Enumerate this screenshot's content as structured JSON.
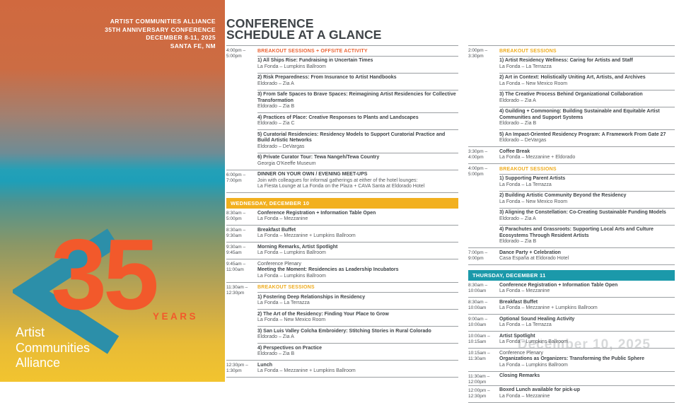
{
  "sidebar": {
    "header_lines": [
      "ARTIST COMMUNITIES ALLIANCE",
      "35TH ANNIVERSARY CONFERENCE",
      "DECEMBER 8-11, 2025",
      "SANTA FE, NM"
    ],
    "logo": {
      "number": "35",
      "years": "YEARS",
      "org_lines": [
        "Artist",
        "Communities",
        "Alliance"
      ]
    }
  },
  "title": {
    "line1": "CONFERENCE",
    "line2": "SCHEDULE AT A GLANCE"
  },
  "watermark": "December 10, 2025",
  "colors": {
    "orange": "#EB6333",
    "gold": "#EFAC1E",
    "banner_gold": "#F2B01F",
    "banner_teal": "#1B99AA"
  },
  "columns": [
    {
      "groups": [
        {
          "banner": null,
          "blocks": [
            {
              "time": [
                "4:00pm –",
                "5:00pm"
              ],
              "header": {
                "text": "BREAKOUT SESSIONS + OFFSITE ACTIVITY",
                "color": "orange"
              },
              "items": [
                {
                  "title": "1) All Ships Rise: Fundraising in Uncertain Times",
                  "loc": [
                    "La Fonda – Lumpkins Ballroom"
                  ]
                },
                {
                  "title": "2) Risk Preparedness: From Insurance to Artist Handbooks",
                  "loc": [
                    "Eldorado – Zia A"
                  ]
                },
                {
                  "title": "3) From Safe Spaces to Brave Spaces: Reimagining Artist Residencies for Collective Transformation",
                  "loc": [
                    "Eldorado – Zia B"
                  ]
                },
                {
                  "title": "4) Practices of Place: Creative Responses to Plants and Landscapes",
                  "loc": [
                    "Eldorado – Zia C"
                  ]
                },
                {
                  "title": "5) Curatorial Residencies: Residency Models to Support Curatorial Practice and Build Artistic Networks",
                  "loc": [
                    "Eldorado – DeVargas"
                  ]
                },
                {
                  "title": "6) Private Curator Tour: Tewa Nangeh/Tewa Country",
                  "loc": [
                    "Georgia O'Keeffe Museum"
                  ]
                }
              ]
            },
            {
              "time": [
                "6:00pm –",
                "7:00pm"
              ],
              "items": [
                {
                  "title": "DINNER ON YOUR OWN / EVENING MEET-UPS",
                  "loc": [
                    "Join with colleagues for informal gatherings at either of the hotel lounges:",
                    "La Fiesta Lounge at La Fonda on the Plaza + CAVA Santa at Eldorado Hotel"
                  ]
                }
              ]
            }
          ]
        },
        {
          "banner": {
            "text": "WEDNESDAY, DECEMBER 10",
            "color": "banner_gold"
          },
          "blocks": [
            {
              "time": [
                "8:30am –",
                "5:00pm"
              ],
              "items": [
                {
                  "title": "Conference Registration + Information Table Open",
                  "loc": [
                    "La Fonda – Mezzanine"
                  ]
                }
              ]
            },
            {
              "time": [
                "8:30am –",
                "9:30am"
              ],
              "items": [
                {
                  "title": "Breakfast Buffet",
                  "loc": [
                    "La Fonda – Mezzanine + Lumpkins Ballroom"
                  ]
                }
              ]
            },
            {
              "time": [
                "9:30am –",
                "9:45am"
              ],
              "items": [
                {
                  "title": "Morning Remarks, Artist Spotlight",
                  "loc": [
                    "La Fonda – Lumpkins Ballroom"
                  ]
                }
              ]
            },
            {
              "time": [
                "9:45am –",
                "11:00am"
              ],
              "items": [
                {
                  "pretitle": "Conference Plenary",
                  "title": "Meeting the Moment: Residencies as Leadership Incubators",
                  "loc": [
                    "La Fonda – Lumpkins Ballroom"
                  ]
                }
              ]
            },
            {
              "time": [
                "11:30am –",
                "12:30pm"
              ],
              "header": {
                "text": "BREAKOUT SESSIONS",
                "color": "gold"
              },
              "items": [
                {
                  "title": "1) Fostering Deep Relationships in Residency",
                  "loc": [
                    "La Fonda – La Terrazza"
                  ]
                },
                {
                  "title": "2) The Art of the Residency: Finding Your Place to Grow",
                  "loc": [
                    "La Fonda – New Mexico Room"
                  ]
                },
                {
                  "title": "3) San Luis Valley Colcha Embroidery: Stitching Stories in Rural Colorado",
                  "loc": [
                    "Eldorado – Zia A"
                  ]
                },
                {
                  "title": "4) Perspectives on Practice",
                  "loc": [
                    "Eldorado – Zia B"
                  ]
                }
              ]
            },
            {
              "time": [
                "12:30pm –",
                "1:30pm"
              ],
              "items": [
                {
                  "title": "Lunch",
                  "loc": [
                    "La Fonda – Mezzanine + Lumpkins Ballroom"
                  ]
                }
              ]
            }
          ]
        }
      ]
    },
    {
      "groups": [
        {
          "banner": null,
          "blocks": [
            {
              "time": [
                "2:00pm –",
                "3:30pm"
              ],
              "header": {
                "text": "BREAKOUT SESSIONS",
                "color": "gold"
              },
              "items": [
                {
                  "title": "1) Artist Residency Wellness: Caring for Artists and Staff",
                  "loc": [
                    "La Fonda – La Terrazza"
                  ]
                },
                {
                  "title": "2) Art in Context: Holistically Uniting Art, Artists, and Archives",
                  "loc": [
                    "La Fonda – New Mexico Room"
                  ]
                },
                {
                  "title": "3) The Creative Process Behind Organizational Collaboration",
                  "loc": [
                    "Eldorado – Zia A"
                  ]
                },
                {
                  "title": "4) Guilding + Commoning: Building Sustainable and Equitable Artist Communities and Support Systems",
                  "loc": [
                    "Eldorado – Zia B"
                  ]
                },
                {
                  "title": "5) An Impact-Oriented Residency Program: A Framework From Gate 27",
                  "loc": [
                    "Eldorado – DeVargas"
                  ]
                }
              ]
            },
            {
              "time": [
                "3:30pm –",
                "4:00pm"
              ],
              "items": [
                {
                  "title": "Coffee Break",
                  "loc": [
                    "La Fonda – Mezzanine + Eldorado"
                  ]
                }
              ]
            },
            {
              "time": [
                "4:00pm –",
                "5:00pm"
              ],
              "header": {
                "text": "BREAKOUT SESSIONS",
                "color": "gold"
              },
              "items": [
                {
                  "title": "1) Supporting Parent Artists",
                  "loc": [
                    "La Fonda – La Terrazza"
                  ]
                },
                {
                  "title": "2) Building Artistic Community Beyond the Residency",
                  "loc": [
                    "La Fonda – New Mexico Room"
                  ]
                },
                {
                  "title": "3) Aligning the Constellation: Co-Creating Sustainable Funding Models",
                  "loc": [
                    "Eldorado – Zia A"
                  ]
                },
                {
                  "title": "4) Parachutes and Grassroots: Supporting Local Arts and Culture Ecosystems Through Resident Artists",
                  "loc": [
                    "Eldorado – Zia B"
                  ]
                }
              ]
            },
            {
              "time": [
                "7:00pm –",
                "9:00pm"
              ],
              "items": [
                {
                  "title": "Dance Party + Celebration",
                  "loc": [
                    "Casa España at Eldorado Hotel"
                  ]
                }
              ]
            }
          ]
        },
        {
          "banner": {
            "text": "THURSDAY, DECEMBER 11",
            "color": "banner_teal"
          },
          "blocks": [
            {
              "time": [
                "8:30am –",
                "10:00am"
              ],
              "items": [
                {
                  "title": "Conference Registration + Information Table Open",
                  "loc": [
                    "La Fonda – Mezzanine"
                  ]
                }
              ]
            },
            {
              "time": [
                "8:30am –",
                "10:00am"
              ],
              "items": [
                {
                  "title": "Breakfast Buffet",
                  "loc": [
                    "La Fonda – Mezzanine + Lumpkins Ballroom"
                  ]
                }
              ]
            },
            {
              "time": [
                "9:00am –",
                "10:00am"
              ],
              "items": [
                {
                  "title": "Optional Sound Healing Activity",
                  "loc": [
                    "La Fonda – La Terrazza"
                  ]
                }
              ]
            },
            {
              "time": [
                "10:00am –",
                "10:15am"
              ],
              "items": [
                {
                  "title": "Artist Spotlight",
                  "loc": [
                    "La Fonda – Lumpkins Ballroom"
                  ]
                }
              ]
            },
            {
              "time": [
                "10:15am –",
                "11:30am"
              ],
              "items": [
                {
                  "pretitle": "Conference Plenary",
                  "title": "Organizations as Organizers: Transforming the Public Sphere",
                  "loc": [
                    "La Fonda – Lumpkins Ballroom"
                  ]
                }
              ]
            },
            {
              "time": [
                "11:30am –",
                "12:00pm"
              ],
              "items": [
                {
                  "title": "Closing Remarks",
                  "loc": []
                }
              ]
            },
            {
              "time": [
                "12:00pm –",
                "12:30pm"
              ],
              "items": [
                {
                  "title": "Boxed Lunch available for pick-up",
                  "loc": [
                    "La Fonda – Mezzanine"
                  ]
                }
              ]
            }
          ]
        }
      ]
    }
  ]
}
